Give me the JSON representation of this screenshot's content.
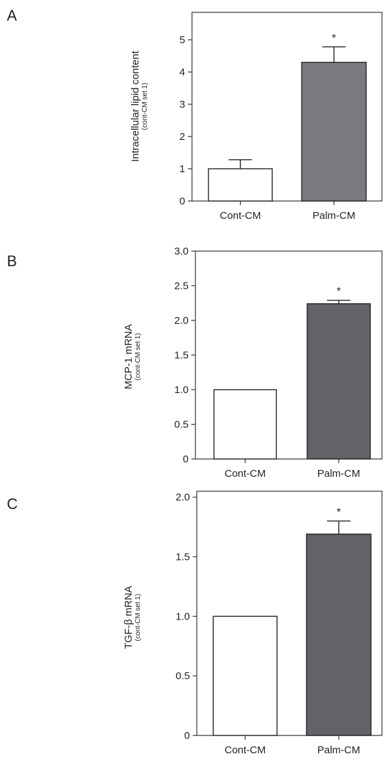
{
  "chart_data": [
    {
      "panel": "A",
      "type": "bar",
      "categories": [
        "Cont-CM",
        "Palm-CM"
      ],
      "values": [
        1.0,
        4.3
      ],
      "error": [
        0.28,
        0.48
      ],
      "annotations": [
        "",
        "*"
      ],
      "bar_colors": [
        "#ffffff",
        "#7a7b7e"
      ],
      "ylabel": "Intracellular lipid content",
      "ylabel_sub": "(cont-CM set 1)",
      "ylim": [
        0,
        5.85
      ],
      "yticks": [
        0,
        1,
        2,
        3,
        4,
        5
      ],
      "ytick_labels": [
        "0",
        "1",
        "2",
        "3",
        "4",
        "5"
      ],
      "grid": false,
      "legend": "none"
    },
    {
      "panel": "B",
      "type": "bar",
      "categories": [
        "Cont-CM",
        "Palm-CM"
      ],
      "values": [
        1.0,
        2.24
      ],
      "error": [
        0.0,
        0.05
      ],
      "annotations": [
        "",
        "*"
      ],
      "bar_colors": [
        "#ffffff",
        "#616366"
      ],
      "ylabel": "MCP-1 mRNA",
      "ylabel_sub": "(cont-CM set 1)",
      "ylim": [
        0,
        3.0
      ],
      "yticks": [
        0,
        0.5,
        1.0,
        1.5,
        2.0,
        2.5,
        3.0
      ],
      "ytick_labels": [
        "0",
        "0.5",
        "1.0",
        "1.5",
        "2.0",
        "2.5",
        "3.0"
      ],
      "grid": false,
      "legend": "none"
    },
    {
      "panel": "C",
      "type": "bar",
      "categories": [
        "Cont-CM",
        "Palm-CM"
      ],
      "values": [
        1.0,
        1.69
      ],
      "error": [
        0.0,
        0.11
      ],
      "annotations": [
        "",
        "*"
      ],
      "bar_colors": [
        "#ffffff",
        "#616366"
      ],
      "ylabel": "TGF-β mRNA",
      "ylabel_sub": "(cont-CM set 1)",
      "ylim": [
        0,
        2.05
      ],
      "yticks": [
        0,
        0.5,
        1.0,
        1.5,
        2.0
      ],
      "ytick_labels": [
        "0",
        "0.5",
        "1.0",
        "1.5",
        "2.0"
      ],
      "grid": false,
      "legend": "none"
    }
  ]
}
